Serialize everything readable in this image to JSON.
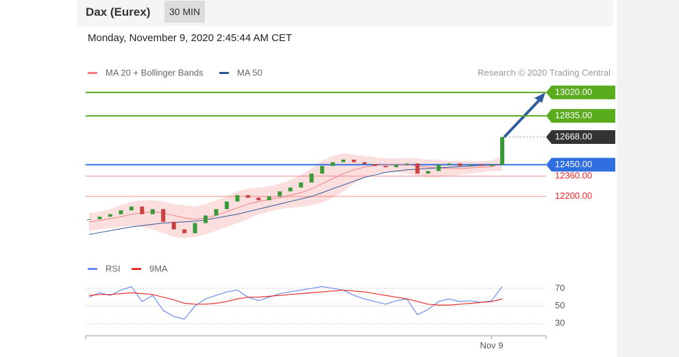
{
  "header": {
    "title": "Dax (Eurex)",
    "timeframe": "30 MIN"
  },
  "date": "Monday, November 9, 2020 2:45:44 AM CET",
  "chart_data": [
    {
      "type": "candlestick",
      "credit": "Research © 2020 Trading Central",
      "ylim": [
        11750,
        13100
      ],
      "close": [
        12020,
        12040,
        12060,
        12090,
        12120,
        12060,
        12100,
        12000,
        11940,
        11910,
        11990,
        12050,
        12100,
        12160,
        12210,
        12190,
        12170,
        12200,
        12240,
        12270,
        12310,
        12380,
        12440,
        12470,
        12490,
        12470,
        12455,
        12440,
        12430,
        12450,
        12460,
        12380,
        12400,
        12450,
        12460,
        12440,
        12450,
        12440,
        12450,
        12668
      ],
      "series": [
        {
          "name": "MA 20 + Bollinger Bands",
          "color": "#f08080",
          "values": [
            12000,
            12010,
            12025,
            12040,
            12060,
            12070,
            12080,
            12070,
            12050,
            12030,
            12020,
            12030,
            12050,
            12080,
            12110,
            12140,
            12160,
            12175,
            12190,
            12210,
            12230,
            12260,
            12300,
            12340,
            12380,
            12410,
            12430,
            12445,
            12450,
            12450,
            12450,
            12440,
            12430,
            12425,
            12420,
            12420,
            12425,
            12430,
            12435,
            12460
          ],
          "upper": [
            12070,
            12080,
            12100,
            12130,
            12160,
            12170,
            12170,
            12160,
            12140,
            12130,
            12120,
            12140,
            12170,
            12200,
            12240,
            12260,
            12270,
            12280,
            12300,
            12330,
            12370,
            12420,
            12480,
            12520,
            12540,
            12530,
            12520,
            12510,
            12500,
            12500,
            12500,
            12500,
            12490,
            12490,
            12480,
            12480,
            12480,
            12480,
            12480,
            12520
          ],
          "lower": [
            11930,
            11940,
            11950,
            11960,
            11970,
            11960,
            11940,
            11910,
            11880,
            11870,
            11880,
            11900,
            11930,
            11960,
            11990,
            12020,
            12060,
            12080,
            12100,
            12110,
            12120,
            12130,
            12150,
            12190,
            12240,
            12300,
            12350,
            12380,
            12390,
            12390,
            12380,
            12360,
            12350,
            12350,
            12360,
            12370,
            12380,
            12390,
            12400,
            12400
          ]
        },
        {
          "name": "MA 50",
          "color": "#2f5597",
          "values": [
            11900,
            11915,
            11930,
            11945,
            11960,
            11970,
            11980,
            11990,
            11995,
            12000,
            12005,
            12015,
            12030,
            12045,
            12060,
            12080,
            12100,
            12120,
            12140,
            12160,
            12180,
            12200,
            12230,
            12260,
            12290,
            12320,
            12350,
            12370,
            12390,
            12400,
            12410,
            12415,
            12420,
            12425,
            12430,
            12435,
            12440,
            12445,
            12448,
            12452
          ]
        }
      ],
      "levels": [
        {
          "value": 13020,
          "label": "13020.00",
          "color": "#5aab1e",
          "tag": true
        },
        {
          "value": 12835,
          "label": "12835.00",
          "color": "#5aab1e",
          "tag": true
        },
        {
          "value": 12668,
          "label": "12668.00",
          "color": "#333333",
          "tag": true
        },
        {
          "value": 12450,
          "label": "12450.00",
          "color": "#2f6fe0",
          "tag": true
        },
        {
          "value": 12360,
          "label": "12360.00",
          "color": "#f27b7b",
          "tag": false
        },
        {
          "value": 12200,
          "label": "12200.00",
          "color": "#f27b7b",
          "tag": false
        }
      ]
    },
    {
      "type": "line",
      "categories": [
        null,
        null,
        null,
        null,
        null,
        null,
        null,
        null,
        null,
        null,
        null,
        null,
        null,
        null,
        null,
        null,
        null,
        null,
        null,
        null,
        null,
        null,
        null,
        null,
        null,
        null,
        null,
        null,
        null,
        null,
        null,
        null,
        null,
        null,
        null,
        null,
        null,
        null,
        "Nov 9",
        null
      ],
      "ylim": [
        20,
        80
      ],
      "yticks": [
        30,
        50,
        70
      ],
      "series": [
        {
          "name": "RSI",
          "color": "#6b8cf0",
          "values": [
            60,
            65,
            62,
            68,
            72,
            55,
            62,
            45,
            38,
            35,
            50,
            58,
            62,
            66,
            68,
            60,
            56,
            60,
            64,
            66,
            68,
            70,
            72,
            70,
            68,
            62,
            58,
            55,
            52,
            56,
            58,
            40,
            46,
            55,
            58,
            55,
            56,
            54,
            56,
            72
          ]
        },
        {
          "name": "9MA",
          "color": "#e8302a",
          "values": [
            62,
            63,
            63,
            64,
            65,
            64,
            63,
            60,
            57,
            53,
            52,
            52,
            53,
            55,
            58,
            60,
            60,
            61,
            62,
            63,
            64,
            65,
            66,
            67,
            68,
            67,
            66,
            64,
            62,
            60,
            58,
            55,
            52,
            51,
            51,
            52,
            53,
            54,
            55,
            58
          ]
        }
      ]
    }
  ]
}
